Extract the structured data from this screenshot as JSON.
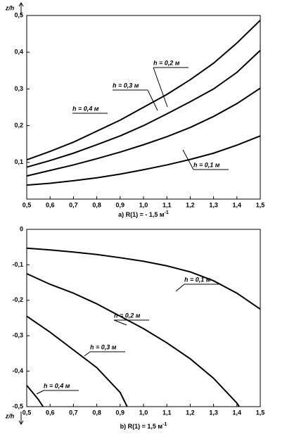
{
  "chart_data": [
    {
      "type": "line",
      "ylabel": "z/h",
      "caption": "a) R(1) = - 1,5 м",
      "caption_sup": "-1",
      "xlim": [
        0.5,
        1.5
      ],
      "xticks": [
        {
          "value": 0.5,
          "label": "0,5"
        },
        {
          "value": 0.6,
          "label": "0,6"
        },
        {
          "value": 0.7,
          "label": "0,7"
        },
        {
          "value": 0.8,
          "label": "0,8"
        },
        {
          "value": 0.9,
          "label": "0,9"
        },
        {
          "value": 1.0,
          "label": "1,0"
        },
        {
          "value": 1.1,
          "label": "1,1"
        },
        {
          "value": 1.2,
          "label": "1,2"
        },
        {
          "value": 1.3,
          "label": "1,3"
        },
        {
          "value": 1.4,
          "label": "1,4"
        },
        {
          "value": 1.5,
          "label": "1,5"
        }
      ],
      "ylim": [
        0,
        0.5
      ],
      "yticks": [
        {
          "value": 0.1,
          "label": "0,1"
        },
        {
          "value": 0.2,
          "label": "0,2"
        },
        {
          "value": 0.3,
          "label": "0,3"
        },
        {
          "value": 0.4,
          "label": "0,4"
        },
        {
          "value": 0.5,
          "label": "0,5"
        }
      ],
      "series": [
        {
          "name": "h = 0,4 м",
          "color": "#000000",
          "x": [
            0.5,
            0.6,
            0.7,
            0.8,
            0.9,
            1.0,
            1.1,
            1.2,
            1.3,
            1.4,
            1.5
          ],
          "values": [
            0.107,
            0.13,
            0.155,
            0.185,
            0.215,
            0.25,
            0.285,
            0.325,
            0.37,
            0.425,
            0.487
          ]
        },
        {
          "name": "h = 0,3 м",
          "color": "#000000",
          "x": [
            0.5,
            0.6,
            0.7,
            0.8,
            0.9,
            1.0,
            1.1,
            1.2,
            1.3,
            1.4,
            1.5
          ],
          "values": [
            0.087,
            0.105,
            0.125,
            0.148,
            0.172,
            0.2,
            0.232,
            0.265,
            0.3,
            0.345,
            0.405
          ]
        },
        {
          "name": "h = 0,2 м",
          "color": "#000000",
          "x": [
            0.5,
            0.6,
            0.7,
            0.8,
            0.9,
            1.0,
            1.1,
            1.2,
            1.3,
            1.4,
            1.5
          ],
          "values": [
            0.063,
            0.078,
            0.093,
            0.11,
            0.128,
            0.148,
            0.17,
            0.195,
            0.225,
            0.26,
            0.302
          ]
        },
        {
          "name": "h = 0,1 м",
          "color": "#000000",
          "x": [
            0.5,
            0.6,
            0.7,
            0.8,
            0.9,
            1.0,
            1.1,
            1.2,
            1.3,
            1.4,
            1.5
          ],
          "values": [
            0.038,
            0.043,
            0.05,
            0.058,
            0.068,
            0.08,
            0.093,
            0.108,
            0.125,
            0.147,
            0.172
          ]
        }
      ]
    },
    {
      "type": "line",
      "ylabel": "z/h",
      "caption": "b) R(1) = 1,5 м",
      "caption_sup": "-1",
      "xlim": [
        0.5,
        1.5
      ],
      "xticks": [
        {
          "value": 0.5,
          "label": "0,5"
        },
        {
          "value": 0.6,
          "label": "0,6"
        },
        {
          "value": 0.7,
          "label": "0,7"
        },
        {
          "value": 0.8,
          "label": "0,8"
        },
        {
          "value": 0.9,
          "label": "0,9"
        },
        {
          "value": 1.0,
          "label": "1,0"
        },
        {
          "value": 1.1,
          "label": "1,1"
        },
        {
          "value": 1.2,
          "label": "1,2"
        },
        {
          "value": 1.3,
          "label": "1,3"
        },
        {
          "value": 1.4,
          "label": "1,4"
        },
        {
          "value": 1.5,
          "label": "1,5"
        }
      ],
      "ylim": [
        -0.5,
        0
      ],
      "yticks": [
        0,
        {
          "value": -0.1,
          "label": "-0,1"
        },
        {
          "value": -0.2,
          "label": "-0,2"
        },
        {
          "value": -0.3,
          "label": "-0,3"
        },
        {
          "value": -0.4,
          "label": "-0,4"
        },
        {
          "value": -0.5,
          "label": "-0,5"
        }
      ],
      "series": [
        {
          "name": "h = 0,1 м",
          "color": "#000000",
          "x": [
            0.5,
            0.6,
            0.7,
            0.8,
            0.9,
            1.0,
            1.1,
            1.2,
            1.3,
            1.4,
            1.5
          ],
          "values": [
            -0.053,
            -0.058,
            -0.064,
            -0.071,
            -0.08,
            -0.09,
            -0.103,
            -0.12,
            -0.145,
            -0.18,
            -0.225
          ]
        },
        {
          "name": "h = 0,2 м",
          "color": "#000000",
          "x": [
            0.5,
            0.6,
            0.7,
            0.8,
            0.9,
            1.0,
            1.1,
            1.2,
            1.3,
            1.4,
            1.41
          ],
          "values": [
            -0.125,
            -0.155,
            -0.18,
            -0.21,
            -0.245,
            -0.28,
            -0.32,
            -0.365,
            -0.42,
            -0.49,
            -0.5
          ]
        },
        {
          "name": "h = 0,3 м",
          "color": "#000000",
          "x": [
            0.5,
            0.6,
            0.7,
            0.8,
            0.9,
            0.93
          ],
          "values": [
            -0.245,
            -0.29,
            -0.34,
            -0.39,
            -0.46,
            -0.5
          ]
        },
        {
          "name": "h = 0,4 м",
          "color": "#000000",
          "x": [
            0.5,
            0.55,
            0.57
          ],
          "values": [
            -0.44,
            -0.48,
            -0.5
          ]
        }
      ]
    }
  ]
}
